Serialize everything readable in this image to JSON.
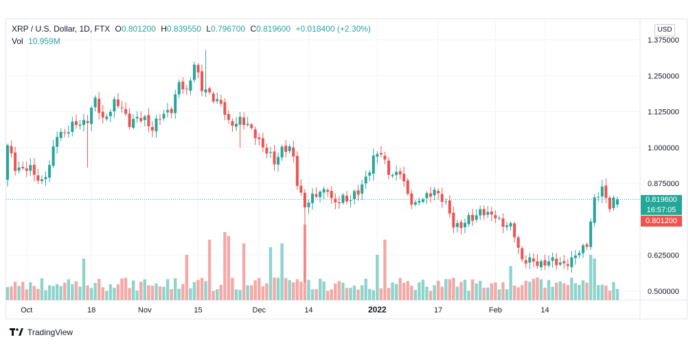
{
  "legend": {
    "symbol": "XRP / U.S. Dollar, 1D, FTX",
    "o_label": "O",
    "o_value": "0.801200",
    "h_label": "H",
    "h_value": "0.839550",
    "l_label": "L",
    "l_value": "0.796700",
    "c_label": "C",
    "c_value": "0.819600",
    "change": "+0.018400 (+2.30%)",
    "vol_label": "Vol",
    "vol_value": "10.959M"
  },
  "currency_button": "USD",
  "last_price_tag": {
    "price": "0.819600",
    "countdown": "16:57:05"
  },
  "open_price_tag": "0.801200",
  "footer": {
    "brand": "TradingView",
    "logo_icon": "tradingview-logo-icon"
  },
  "colors": {
    "up": "#26a69a",
    "down": "#ef5350",
    "up_volume": "#8fd3cb",
    "down_volume": "#f2a9a7",
    "grid": "#f0f3fa"
  },
  "chart_data": {
    "type": "candlestick",
    "y_ticks": [
      "1.375000",
      "1.250000",
      "1.125000",
      "1.000000",
      "0.875000",
      "0.625000",
      "0.500000"
    ],
    "y_tick_values": [
      1.375,
      1.25,
      1.125,
      1.0,
      0.875,
      0.625,
      0.5
    ],
    "x_ticks": [
      "Oct",
      "18",
      "Nov",
      "15",
      "Dec",
      "14",
      "2022",
      "17",
      "Feb",
      "14"
    ],
    "x_tick_dates": [
      "2021-10-01",
      "2021-10-18",
      "2021-11-01",
      "2021-11-15",
      "2021-12-01",
      "2021-12-14",
      "2022-01-01",
      "2022-01-17",
      "2022-02-01",
      "2022-02-14"
    ],
    "ylim": [
      0.475,
      1.405
    ],
    "start_date": "2021-09-26",
    "close_anchors": [
      [
        "2021-09-26",
        1.0
      ],
      [
        "2021-09-28",
        0.935
      ],
      [
        "2021-10-02",
        0.92
      ],
      [
        "2021-10-05",
        0.885
      ],
      [
        "2021-10-07",
        0.93
      ],
      [
        "2021-10-09",
        1.05
      ],
      [
        "2021-10-12",
        1.06
      ],
      [
        "2021-10-14",
        1.08
      ],
      [
        "2021-10-17",
        1.1
      ],
      [
        "2021-10-19",
        1.16
      ],
      [
        "2021-10-21",
        1.1
      ],
      [
        "2021-10-24",
        1.15
      ],
      [
        "2021-10-26",
        1.14
      ],
      [
        "2021-10-28",
        1.09
      ],
      [
        "2021-11-01",
        1.1
      ],
      [
        "2021-11-03",
        1.07
      ],
      [
        "2021-11-05",
        1.1
      ],
      [
        "2021-11-08",
        1.14
      ],
      [
        "2021-11-10",
        1.22
      ],
      [
        "2021-11-12",
        1.19
      ],
      [
        "2021-11-14",
        1.3
      ],
      [
        "2021-11-16",
        1.2
      ],
      [
        "2021-11-19",
        1.18
      ],
      [
        "2021-11-21",
        1.15
      ],
      [
        "2021-11-23",
        1.08
      ],
      [
        "2021-11-26",
        1.1
      ],
      [
        "2021-11-28",
        1.07
      ],
      [
        "2021-11-30",
        1.05
      ],
      [
        "2021-12-03",
        0.98
      ],
      [
        "2021-12-05",
        0.95
      ],
      [
        "2021-12-07",
        1.0
      ],
      [
        "2021-12-09",
        0.99
      ],
      [
        "2021-12-10",
        0.96
      ],
      [
        "2021-12-11",
        0.88
      ],
      [
        "2021-12-13",
        0.8
      ],
      [
        "2021-12-15",
        0.82
      ],
      [
        "2021-12-17",
        0.85
      ],
      [
        "2021-12-19",
        0.86
      ],
      [
        "2021-12-20",
        0.81
      ],
      [
        "2021-12-21",
        0.8
      ],
      [
        "2021-12-23",
        0.83
      ],
      [
        "2021-12-25",
        0.82
      ],
      [
        "2021-12-27",
        0.84
      ],
      [
        "2021-12-29",
        0.9
      ],
      [
        "2021-12-31",
        0.96
      ],
      [
        "2022-01-02",
        0.98
      ],
      [
        "2022-01-04",
        0.92
      ],
      [
        "2022-01-06",
        0.9
      ],
      [
        "2022-01-07",
        0.91
      ],
      [
        "2022-01-09",
        0.84
      ],
      [
        "2022-01-11",
        0.8
      ],
      [
        "2022-01-14",
        0.83
      ],
      [
        "2022-01-16",
        0.86
      ],
      [
        "2022-01-17",
        0.83
      ],
      [
        "2022-01-19",
        0.8
      ],
      [
        "2022-01-21",
        0.74
      ],
      [
        "2022-01-23",
        0.72
      ],
      [
        "2022-01-25",
        0.75
      ],
      [
        "2022-01-28",
        0.78
      ],
      [
        "2022-01-30",
        0.76
      ],
      [
        "2022-02-01",
        0.77
      ],
      [
        "2022-02-03",
        0.73
      ],
      [
        "2022-02-05",
        0.72
      ],
      [
        "2022-02-06",
        0.7
      ],
      [
        "2022-02-08",
        0.61
      ],
      [
        "2022-02-10",
        0.6
      ],
      [
        "2022-02-13",
        0.6
      ],
      [
        "2022-02-16",
        0.6
      ],
      [
        "2022-02-19",
        0.6
      ],
      [
        "2022-02-21",
        0.6
      ],
      [
        "2022-02-23",
        0.64
      ],
      [
        "2022-02-25",
        0.67
      ],
      [
        "2022-02-27",
        0.81
      ],
      [
        "2022-03-01",
        0.86
      ],
      [
        "2022-03-03",
        0.8
      ],
      [
        "2022-03-05",
        0.82
      ]
    ],
    "volume_spikes": [
      [
        "2021-10-16",
        0.55
      ],
      [
        "2021-11-12",
        0.6
      ],
      [
        "2021-11-18",
        0.8
      ],
      [
        "2021-11-22",
        0.9
      ],
      [
        "2021-11-23",
        0.85
      ],
      [
        "2021-11-27",
        0.75
      ],
      [
        "2021-12-04",
        0.7
      ],
      [
        "2021-12-07",
        0.75
      ],
      [
        "2021-12-13",
        1.0
      ],
      [
        "2022-01-01",
        0.6
      ],
      [
        "2022-01-03",
        0.8
      ],
      [
        "2022-02-05",
        0.45
      ],
      [
        "2022-02-26",
        0.6
      ],
      [
        "2022-02-27",
        0.55
      ]
    ],
    "last_close": 0.8196,
    "last_open": 0.8012
  }
}
